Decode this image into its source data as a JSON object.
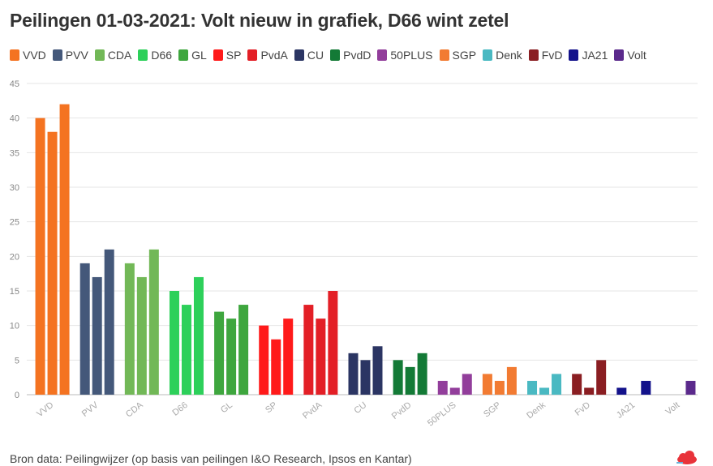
{
  "title": "Peilingen 01-03-2021: Volt nieuw in grafiek, D66 wint zetel",
  "source": "Bron data: Peilingwijzer (op basis van peilingen I&O Research, Ipsos en Kantar)",
  "logo_icon": "red-cloud-logo-icon",
  "chart_data": {
    "type": "bar",
    "title": "Peilingen 01-03-2021: Volt nieuw in grafiek, D66 wint zetel",
    "xlabel": "",
    "ylabel": "",
    "ylim": [
      0,
      45
    ],
    "yticks": [
      0,
      5,
      10,
      15,
      20,
      25,
      30,
      35,
      40,
      45
    ],
    "grid": true,
    "legend_position": "top",
    "categories": [
      "VVD",
      "PVV",
      "CDA",
      "D66",
      "GL",
      "SP",
      "PvdA",
      "CU",
      "PvdD",
      "50PLUS",
      "SGP",
      "Denk",
      "FvD",
      "JA21",
      "Volt"
    ],
    "colors": [
      "#f47321",
      "#44587a",
      "#72b857",
      "#2dd05a",
      "#3ea63e",
      "#ff1a1a",
      "#e31f26",
      "#2b3563",
      "#137a36",
      "#923e9b",
      "#f27b32",
      "#4ab9c2",
      "#8a1e22",
      "#13128b",
      "#5b2a8c"
    ],
    "bars": [
      [
        40,
        38,
        42
      ],
      [
        19,
        17,
        21
      ],
      [
        19,
        17,
        21
      ],
      [
        15,
        13,
        17
      ],
      [
        12,
        11,
        13
      ],
      [
        10,
        8,
        11
      ],
      [
        13,
        11,
        15
      ],
      [
        6,
        5,
        7
      ],
      [
        5,
        4,
        6
      ],
      [
        2,
        1,
        3
      ],
      [
        3,
        2,
        4
      ],
      [
        2,
        1,
        3
      ],
      [
        3,
        1,
        5
      ],
      [
        1,
        null,
        2
      ],
      [
        null,
        null,
        2
      ]
    ]
  }
}
